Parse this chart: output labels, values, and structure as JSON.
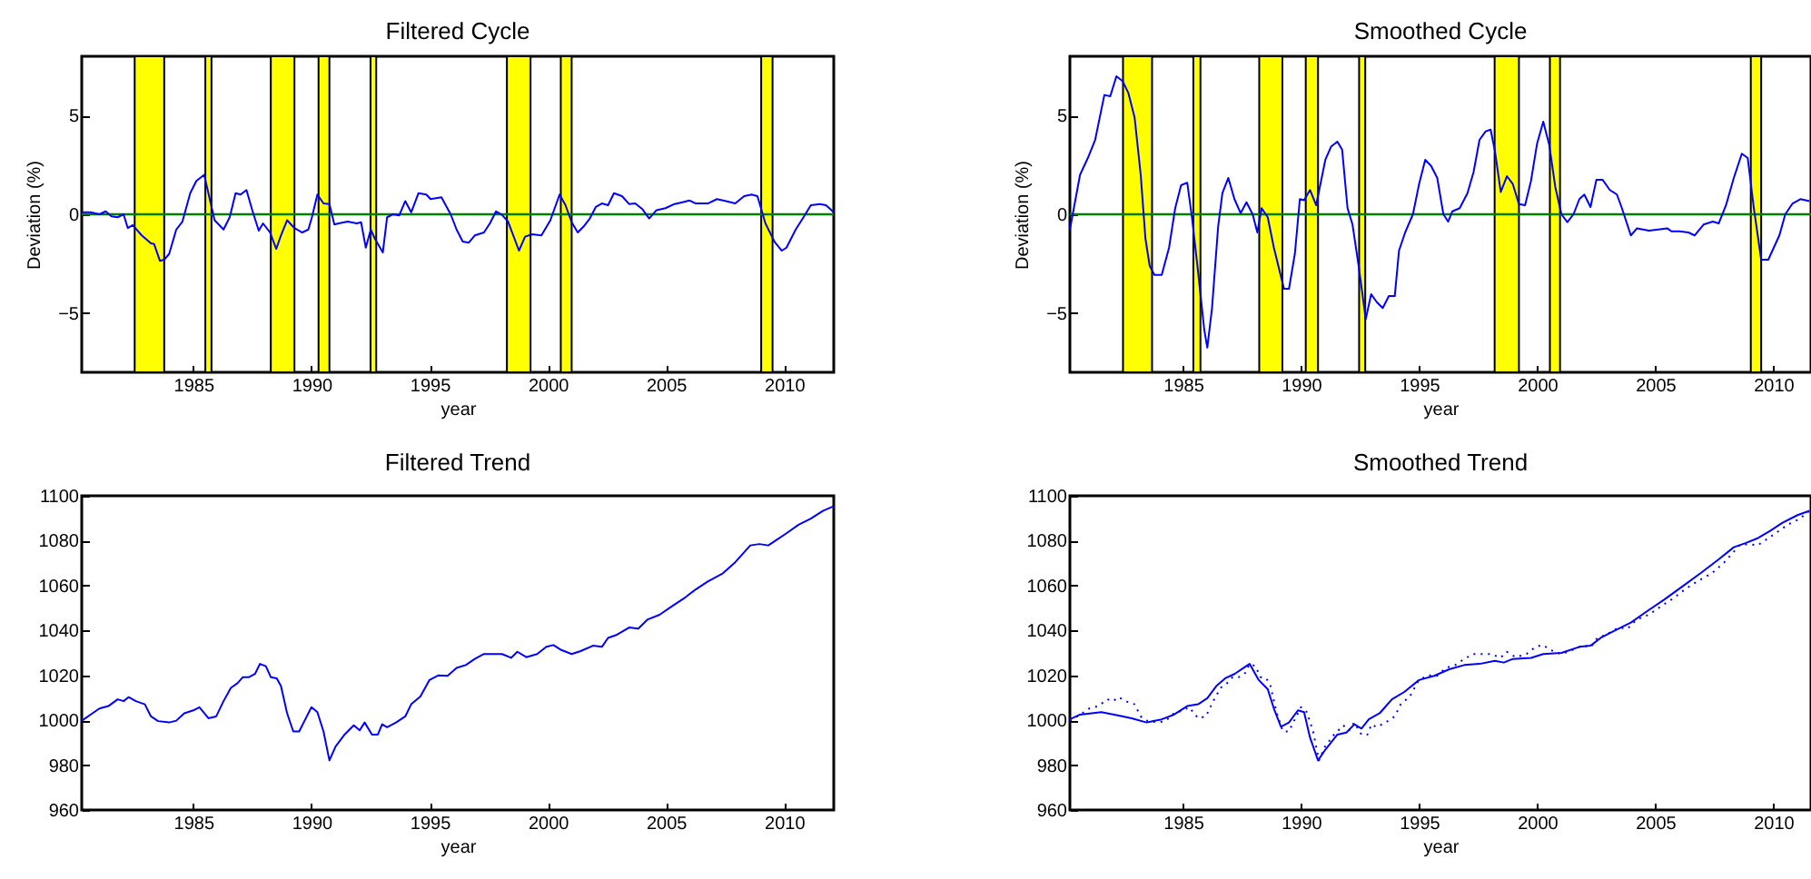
{
  "chart_data": [
    {
      "type": "line",
      "title": "Filtered Cycle",
      "xlabel": "year",
      "ylabel": "Deviation (%)",
      "xlim": [
        1980.28,
        2012.1
      ],
      "xticks": [
        1985,
        1990,
        1995,
        2000,
        2005,
        2010
      ],
      "ylim": [
        -8,
        8
      ],
      "yticks": [
        -5,
        0,
        5
      ],
      "grid": false,
      "bands": [
        {
          "axis": "x",
          "from": 1982.52,
          "to": 1983.77,
          "color": "#ffff00"
        },
        {
          "axis": "x",
          "from": 1985.51,
          "to": 1985.77,
          "color": "#ffff00"
        },
        {
          "axis": "x",
          "from": 1988.28,
          "to": 1989.28,
          "color": "#ffff00"
        },
        {
          "axis": "x",
          "from": 1990.3,
          "to": 1990.76,
          "color": "#ffff00"
        },
        {
          "axis": "x",
          "from": 1992.5,
          "to": 1992.74,
          "color": "#ffff00"
        },
        {
          "axis": "x",
          "from": 1998.27,
          "to": 1999.27,
          "color": "#ffff00"
        },
        {
          "axis": "x",
          "from": 2000.55,
          "to": 2001.01,
          "color": "#ffff00"
        },
        {
          "axis": "x",
          "from": 2009.03,
          "to": 2009.51,
          "color": "#ffff00"
        }
      ],
      "ref_lines": [
        {
          "axis": "y",
          "value": 0,
          "color": "#008000"
        }
      ],
      "series": [
        {
          "color": "#0000ff",
          "x": [
            1980.29,
            1980.65,
            1981.03,
            1981.29,
            1981.54,
            1981.8,
            1982.05,
            1982.23,
            1982.44,
            1982.82,
            1983.21,
            1983.34,
            1983.59,
            1983.77,
            1983.98,
            1984.28,
            1984.54,
            1984.87,
            1985.13,
            1985.46,
            1985.64,
            1985.9,
            1986.28,
            1986.54,
            1986.79,
            1987.0,
            1987.25,
            1987.51,
            1987.77,
            1987.95,
            1988.25,
            1988.51,
            1988.71,
            1988.97,
            1989.28,
            1989.61,
            1989.87,
            1990.02,
            1990.25,
            1990.51,
            1990.76,
            1990.97,
            1991.15,
            1991.53,
            1991.92,
            1992.1,
            1992.3,
            1992.51,
            1992.68,
            1993.02,
            1993.2,
            1993.45,
            1993.71,
            1993.97,
            1994.22,
            1994.53,
            1994.86,
            1995.04,
            1995.5,
            1995.89,
            1996.14,
            1996.4,
            1996.65,
            1996.91,
            1997.3,
            1997.55,
            1997.81,
            1998.06,
            1998.32,
            1998.78,
            1999.04,
            1999.34,
            1999.73,
            2000.11,
            2000.5,
            2000.75,
            2001.01,
            2001.27,
            2001.52,
            2001.78,
            2002.03,
            2002.29,
            2002.55,
            2002.8,
            2003.14,
            2003.44,
            2003.7,
            2004.01,
            2004.29,
            2004.6,
            2004.98,
            2005.36,
            2005.7,
            2006.0,
            2006.26,
            2006.77,
            2007.16,
            2007.54,
            2007.93,
            2008.31,
            2008.62,
            2008.87,
            2009.21,
            2009.59,
            2009.9,
            2010.1,
            2010.49,
            2010.82,
            2011.13,
            2011.51,
            2011.77,
            2012.1
          ],
          "values": [
            0.1,
            0.1,
            0,
            0.15,
            -0.1,
            -0.15,
            0,
            -0.7,
            -0.55,
            -1.07,
            -1.47,
            -1.5,
            -2.36,
            -2.3,
            -2.0,
            -0.77,
            -0.37,
            1.07,
            1.69,
            2.0,
            1.07,
            -0.3,
            -0.77,
            -0.15,
            1.07,
            1.0,
            1.23,
            0.15,
            -0.83,
            -0.46,
            -0.92,
            -1.75,
            -1.07,
            -0.3,
            -0.7,
            -0.92,
            -0.77,
            -0.15,
            1.0,
            0.55,
            0.52,
            -0.52,
            -0.46,
            -0.37,
            -0.46,
            -0.4,
            -1.69,
            -0.77,
            -1.23,
            -1.93,
            -0.15,
            0,
            -0.06,
            0.67,
            0.1,
            1.07,
            1.0,
            0.77,
            0.86,
            0,
            -0.77,
            -1.38,
            -1.44,
            -1.07,
            -0.92,
            -0.46,
            0.15,
            -0.03,
            -0.37,
            -1.84,
            -1.13,
            -1.01,
            -1.07,
            -0.3,
            1.0,
            0.46,
            -0.4,
            -0.92,
            -0.61,
            -0.21,
            0.37,
            0.55,
            0.46,
            1.07,
            0.92,
            0.52,
            0.55,
            0.25,
            -0.21,
            0.21,
            0.31,
            0.52,
            0.61,
            0.7,
            0.55,
            0.55,
            0.77,
            0.67,
            0.55,
            0.92,
            1.0,
            0.92,
            -0.46,
            -1.38,
            -1.84,
            -1.69,
            -0.77,
            -0.15,
            0.46,
            0.52,
            0.46,
            0.1
          ]
        }
      ]
    },
    {
      "type": "line",
      "title": "Smoothed Cycle",
      "xlabel": "year",
      "ylabel": "Deviation (%)",
      "xlim": [
        1980.21,
        2011.6
      ],
      "xticks": [
        1985,
        1990,
        1995,
        2000,
        2005,
        2010
      ],
      "ylim": [
        -8,
        8
      ],
      "yticks": [
        -5,
        0,
        5
      ],
      "grid": false,
      "bands": [
        {
          "axis": "x",
          "from": 1982.46,
          "to": 1983.69,
          "color": "#ffff00"
        },
        {
          "axis": "x",
          "from": 1985.44,
          "to": 1985.74,
          "color": "#ffff00"
        },
        {
          "axis": "x",
          "from": 1988.23,
          "to": 1989.21,
          "color": "#ffff00"
        },
        {
          "axis": "x",
          "from": 1990.2,
          "to": 1990.72,
          "color": "#ffff00"
        },
        {
          "axis": "x",
          "from": 1992.46,
          "to": 1992.72,
          "color": "#ffff00"
        },
        {
          "axis": "x",
          "from": 1998.2,
          "to": 1999.23,
          "color": "#ffff00"
        },
        {
          "axis": "x",
          "from": 2000.54,
          "to": 2000.97,
          "color": "#ffff00"
        },
        {
          "axis": "x",
          "from": 2009.05,
          "to": 2009.49,
          "color": "#ffff00"
        }
      ],
      "ref_lines": [
        {
          "axis": "y",
          "value": 0,
          "color": "#008000"
        }
      ],
      "series": [
        {
          "color": "#0000ff",
          "x": [
            1980.21,
            1980.64,
            1980.97,
            1981.28,
            1981.67,
            1981.92,
            1982.18,
            1982.44,
            1982.69,
            1982.95,
            1983.21,
            1983.41,
            1983.59,
            1983.79,
            1984.1,
            1984.41,
            1984.67,
            1984.92,
            1985.18,
            1985.38,
            1985.64,
            1985.9,
            1986.03,
            1986.23,
            1986.49,
            1986.67,
            1986.92,
            1987.18,
            1987.44,
            1987.69,
            1987.95,
            1988.15,
            1988.33,
            1988.59,
            1988.85,
            1989.1,
            1989.28,
            1989.49,
            1989.74,
            1989.95,
            1990.13,
            1990.38,
            1990.64,
            1991.03,
            1991.28,
            1991.54,
            1991.74,
            1991.97,
            1992.18,
            1992.44,
            1992.74,
            1992.97,
            1993.21,
            1993.46,
            1993.72,
            1993.97,
            1994.15,
            1994.41,
            1994.74,
            1995.0,
            1995.26,
            1995.51,
            1995.77,
            1996.03,
            1996.23,
            1996.41,
            1996.72,
            1997.05,
            1997.31,
            1997.56,
            1997.82,
            1998.03,
            1998.21,
            1998.46,
            1998.72,
            1998.97,
            1999.23,
            1999.49,
            1999.74,
            2000.0,
            2000.26,
            2000.51,
            2000.77,
            2001.03,
            2001.28,
            2001.54,
            2001.79,
            2002.0,
            2002.26,
            2002.51,
            2002.77,
            2003.08,
            2003.38,
            2003.59,
            2003.97,
            2004.23,
            2004.74,
            2005.13,
            2005.51,
            2005.69,
            2006.03,
            2006.41,
            2006.67,
            2007.05,
            2007.44,
            2007.69,
            2008.0,
            2008.33,
            2008.67,
            2008.92,
            2009.18,
            2009.49,
            2009.79,
            2010.26,
            2010.51,
            2010.82,
            2011.15,
            2011.54
          ],
          "values": [
            -0.77,
            2.0,
            2.85,
            3.77,
            6.04,
            5.98,
            6.99,
            6.75,
            6.13,
            4.91,
            2.0,
            -1.23,
            -2.61,
            -3.07,
            -3.07,
            -1.69,
            0.31,
            1.47,
            1.6,
            -0.15,
            -2.91,
            -5.83,
            -6.75,
            -4.75,
            -0.61,
            1.07,
            1.84,
            0.77,
            0.06,
            0.61,
            0,
            -0.92,
            0.31,
            -0.15,
            -1.69,
            -2.91,
            -3.77,
            -3.77,
            -1.99,
            0.77,
            0.71,
            1.23,
            0.46,
            2.76,
            3.44,
            3.68,
            3.28,
            0.31,
            -0.52,
            -2.61,
            -5.31,
            -4.05,
            -4.45,
            -4.75,
            -4.14,
            -4.14,
            -1.84,
            -0.92,
            0,
            1.53,
            2.76,
            2.45,
            1.84,
            0,
            -0.37,
            0.15,
            0.31,
            1.07,
            2.15,
            3.77,
            4.2,
            4.29,
            3.22,
            1.13,
            1.93,
            1.53,
            0.52,
            0.46,
            1.69,
            3.59,
            4.69,
            3.53,
            1.38,
            0,
            -0.4,
            0,
            0.77,
            1.0,
            0.37,
            1.75,
            1.75,
            1.23,
            1.0,
            0.31,
            -1.07,
            -0.71,
            -0.83,
            -0.77,
            -0.71,
            -0.86,
            -0.86,
            -0.92,
            -1.07,
            -0.52,
            -0.37,
            -0.46,
            0.46,
            1.84,
            3.07,
            2.85,
            0.31,
            -2.3,
            -2.3,
            -1.07,
            0,
            0.55,
            0.77,
            0.67
          ]
        }
      ]
    },
    {
      "type": "line",
      "title": "Filtered Trend",
      "xlabel": "year",
      "xlim": [
        1980.28,
        2012.1
      ],
      "xticks": [
        1985,
        1990,
        1995,
        2000,
        2005,
        2010
      ],
      "ylim": [
        960,
        1100
      ],
      "yticks": [
        960,
        980,
        1000,
        1020,
        1040,
        1060,
        1080,
        1100
      ],
      "grid": false,
      "series": [
        {
          "color": "#0000ff",
          "x": [
            1980.29,
            1980.65,
            1981.03,
            1981.41,
            1981.8,
            1982.05,
            1982.26,
            1982.57,
            1982.95,
            1983.21,
            1983.51,
            1983.98,
            1984.28,
            1984.62,
            1985.0,
            1985.26,
            1985.64,
            1985.97,
            1986.28,
            1986.59,
            1986.87,
            1987.1,
            1987.36,
            1987.61,
            1987.82,
            1988.07,
            1988.28,
            1988.53,
            1988.71,
            1988.97,
            1989.23,
            1989.48,
            1989.74,
            1990.0,
            1990.25,
            1990.51,
            1990.76,
            1991.02,
            1991.4,
            1991.79,
            1992.04,
            1992.25,
            1992.56,
            1992.81,
            1992.99,
            1993.2,
            1993.58,
            1993.97,
            1994.22,
            1994.61,
            1994.99,
            1995.38,
            1995.76,
            1996.14,
            1996.53,
            1996.91,
            1997.3,
            1997.68,
            1998.06,
            1998.45,
            1998.71,
            1999.09,
            1999.55,
            1999.94,
            2000.24,
            2000.57,
            2001.01,
            2001.39,
            2001.91,
            2002.29,
            2002.55,
            2002.93,
            2003.44,
            2003.83,
            2004.21,
            2004.73,
            2005.24,
            2005.75,
            2006.26,
            2006.77,
            2007.41,
            2007.93,
            2008.57,
            2008.95,
            2009.33,
            2009.72,
            2010.1,
            2010.61,
            2011.13,
            2011.64,
            2012.1
          ],
          "values": [
            999.8,
            1002.5,
            1005.2,
            1006.3,
            1009.3,
            1008.5,
            1010.3,
            1008.5,
            1007.1,
            1001.7,
            999.6,
            999.0,
            999.8,
            1003.1,
            1004.4,
            1005.8,
            1000.9,
            1001.7,
            1008.5,
            1014.4,
            1016.5,
            1019.2,
            1019.2,
            1020.6,
            1025.1,
            1024.1,
            1019.2,
            1018.7,
            1015.2,
            1003.1,
            995.0,
            995.0,
            1000.4,
            1005.8,
            1003.6,
            995.0,
            982.1,
            988.3,
            993.6,
            997.7,
            995.5,
            999.0,
            993.6,
            993.6,
            998.2,
            996.9,
            999.0,
            1001.7,
            1007.1,
            1010.6,
            1017.9,
            1020.0,
            1019.8,
            1023.3,
            1024.6,
            1027.3,
            1029.5,
            1029.5,
            1029.5,
            1027.8,
            1030.5,
            1028.1,
            1029.5,
            1032.7,
            1033.5,
            1031.3,
            1029.5,
            1030.8,
            1033.2,
            1032.7,
            1036.7,
            1038.1,
            1041.3,
            1040.8,
            1044.8,
            1047.0,
            1050.7,
            1054.2,
            1058.3,
            1061.8,
            1065.5,
            1070.4,
            1077.9,
            1078.5,
            1077.9,
            1080.6,
            1083.3,
            1087.1,
            1089.8,
            1093.3,
            1095.4
          ]
        }
      ]
    },
    {
      "type": "line",
      "title": "Smoothed Trend",
      "xlabel": "year",
      "xlim": [
        1980.21,
        2011.6
      ],
      "xticks": [
        1985,
        1990,
        1995,
        2000,
        2005,
        2010
      ],
      "ylim": [
        960,
        1100
      ],
      "yticks": [
        960,
        980,
        1000,
        1020,
        1040,
        1060,
        1080,
        1100
      ],
      "grid": false,
      "series": [
        {
          "color": "#0000ff",
          "line_style": "solid",
          "x": [
            1980.21,
            1980.64,
            1981.54,
            1982.18,
            1982.82,
            1983.46,
            1984.1,
            1984.62,
            1985.18,
            1985.64,
            1986.03,
            1986.41,
            1986.79,
            1987.18,
            1987.56,
            1987.82,
            1988.21,
            1988.59,
            1988.85,
            1989.15,
            1989.49,
            1989.87,
            1990.13,
            1990.38,
            1990.72,
            1991.03,
            1991.54,
            1991.92,
            1992.26,
            1992.56,
            1992.87,
            1993.33,
            1993.85,
            1994.36,
            1995.0,
            1995.64,
            1996.28,
            1996.92,
            1997.56,
            1998.21,
            1998.59,
            1998.97,
            1999.74,
            2000.26,
            2001.03,
            2001.79,
            2002.26,
            2002.69,
            2003.33,
            2003.97,
            2004.62,
            2005.38,
            2006.15,
            2006.92,
            2007.69,
            2008.33,
            2008.85,
            2009.36,
            2009.87,
            2010.38,
            2011.03,
            2011.54
          ],
          "values": [
            1000.4,
            1002.5,
            1003.6,
            1002.3,
            1000.9,
            999.0,
            1000.4,
            1002.5,
            1006.3,
            1007.1,
            1009.8,
            1015.2,
            1018.7,
            1020.6,
            1023.3,
            1025.1,
            1017.9,
            1013.8,
            1005.2,
            997.1,
            999.0,
            1004.4,
            1003.6,
            992.3,
            982.1,
            986.9,
            993.6,
            994.5,
            998.2,
            996.3,
            1000.4,
            1003.1,
            1009.3,
            1012.5,
            1017.9,
            1019.8,
            1022.7,
            1024.6,
            1025.1,
            1026.5,
            1025.7,
            1027.3,
            1027.8,
            1029.5,
            1030.0,
            1032.7,
            1033.2,
            1036.7,
            1040.2,
            1043.5,
            1048.3,
            1053.7,
            1059.6,
            1065.5,
            1071.7,
            1077.1,
            1079.0,
            1081.2,
            1084.4,
            1087.9,
            1091.4,
            1093.3
          ]
        },
        {
          "color": "#0000ff",
          "line_style": "dotted",
          "x": [
            1980.21,
            1980.65,
            1981.03,
            1981.41,
            1981.8,
            1982.05,
            1982.26,
            1982.57,
            1982.95,
            1983.21,
            1983.51,
            1983.98,
            1984.28,
            1984.62,
            1985.0,
            1985.26,
            1985.64,
            1985.97,
            1986.28,
            1986.59,
            1986.87,
            1987.1,
            1987.36,
            1987.61,
            1987.82,
            1988.07,
            1988.28,
            1988.53,
            1988.71,
            1988.97,
            1989.23,
            1989.48,
            1989.74,
            1990.0,
            1990.25,
            1990.51,
            1990.76,
            1991.02,
            1991.4,
            1991.79,
            1992.04,
            1992.25,
            1992.56,
            1992.81,
            1992.99,
            1993.2,
            1993.58,
            1993.97,
            1994.22,
            1994.61,
            1994.99,
            1995.38,
            1995.76,
            1996.14,
            1996.53,
            1996.91,
            1997.3,
            1997.68,
            1998.06,
            1998.45,
            1998.71,
            1999.09,
            1999.55,
            1999.94,
            2000.24,
            2000.57,
            2001.01,
            2001.39,
            2001.91,
            2002.29,
            2002.55,
            2002.93,
            2003.44,
            2003.83,
            2004.21,
            2004.73,
            2005.24,
            2005.75,
            2006.26,
            2006.77,
            2007.41,
            2007.93,
            2008.57,
            2008.95,
            2009.33,
            2009.72,
            2010.1,
            2010.61,
            2011.13,
            2011.54
          ],
          "values": [
            999.8,
            1002.5,
            1005.2,
            1006.3,
            1009.3,
            1008.5,
            1010.3,
            1008.5,
            1007.1,
            1001.7,
            999.6,
            999.0,
            999.8,
            1003.1,
            1004.4,
            1005.8,
            1000.9,
            1001.7,
            1008.5,
            1014.4,
            1016.5,
            1019.2,
            1019.2,
            1020.6,
            1025.1,
            1024.1,
            1019.2,
            1018.7,
            1015.2,
            1003.1,
            995.0,
            995.0,
            1000.4,
            1005.8,
            1003.6,
            995.0,
            982.1,
            988.3,
            993.6,
            997.7,
            995.5,
            999.0,
            993.6,
            993.6,
            998.2,
            996.9,
            999.0,
            1001.7,
            1007.1,
            1010.6,
            1017.9,
            1020.0,
            1019.8,
            1023.3,
            1024.6,
            1027.3,
            1029.5,
            1029.5,
            1029.5,
            1027.8,
            1030.5,
            1028.1,
            1029.5,
            1032.7,
            1033.5,
            1031.3,
            1029.5,
            1030.8,
            1033.2,
            1032.7,
            1036.7,
            1038.1,
            1041.3,
            1040.8,
            1044.8,
            1047.0,
            1050.7,
            1054.2,
            1058.3,
            1061.8,
            1065.5,
            1070.4,
            1077.9,
            1078.5,
            1077.9,
            1080.6,
            1083.3,
            1087.1,
            1089.8,
            1093.3
          ]
        }
      ]
    }
  ]
}
